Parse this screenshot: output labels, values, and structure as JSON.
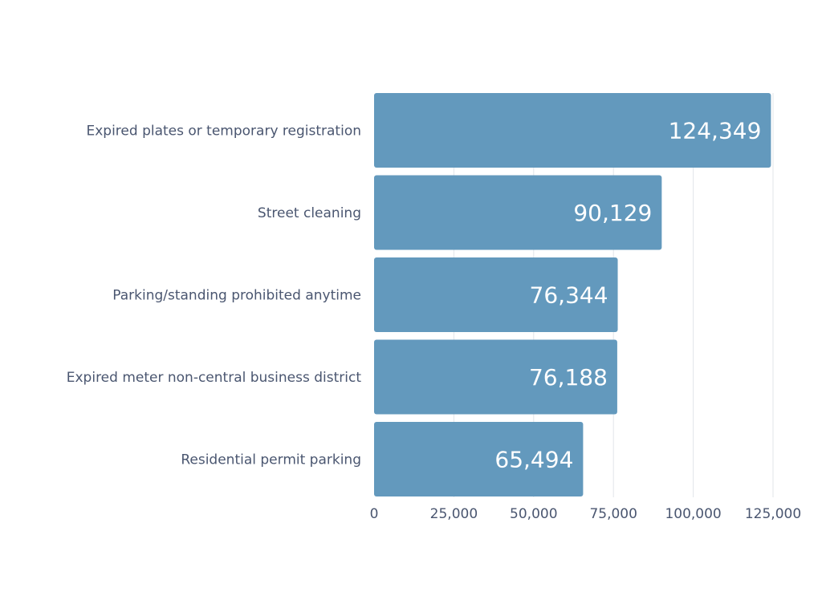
{
  "chart_data": {
    "type": "bar",
    "orientation": "horizontal",
    "categories": [
      "Expired plates or temporary registration",
      "Street cleaning",
      "Parking/standing prohibited anytime",
      "Expired meter non-central business district",
      "Residential permit parking"
    ],
    "values": [
      124349,
      90129,
      76344,
      76188,
      65494
    ],
    "value_labels": [
      "124,349",
      "90,129",
      "76,344",
      "76,188",
      "65,494"
    ],
    "xlim": [
      0,
      125000
    ],
    "x_ticks": [
      0,
      25000,
      50000,
      75000,
      100000,
      125000
    ],
    "x_tick_labels": [
      "0",
      "25,000",
      "50,000",
      "75,000",
      "100,000",
      "125,000"
    ],
    "title": "",
    "xlabel": "",
    "ylabel": "",
    "grid": true,
    "legend": "none",
    "bar_color": "#6399bd",
    "value_label_color": "#ffffff",
    "label_color": "#4a5670",
    "grid_color": "#e2e5ea"
  }
}
